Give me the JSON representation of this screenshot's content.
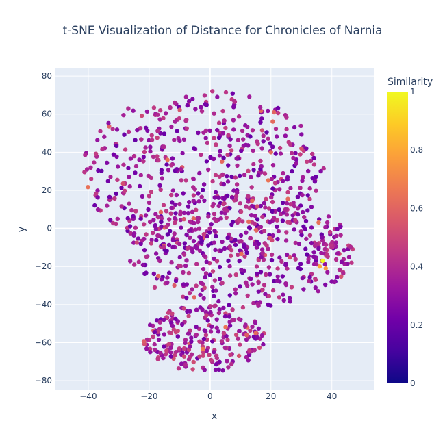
{
  "chart_data": {
    "type": "scatter",
    "title": "t-SNE Visualization of Distance for Chronicles of Narnia",
    "xlabel": "x",
    "ylabel": "y",
    "xlim": [
      -51,
      54
    ],
    "ylim": [
      -85,
      84
    ],
    "xticks": [
      -40,
      -20,
      0,
      20,
      40
    ],
    "yticks": [
      -80,
      -60,
      -40,
      -20,
      0,
      20,
      40,
      60,
      80
    ],
    "grid": true,
    "colorbar": {
      "title": "Similarity",
      "range": [
        0,
        1
      ],
      "ticks": [
        0,
        0.2,
        0.4,
        0.6,
        0.8,
        1
      ],
      "colorscale": [
        "#0d0887",
        "#46039f",
        "#7201a8",
        "#9c179e",
        "#bd3786",
        "#d8576b",
        "#ed7953",
        "#fb9f3a",
        "#fdca26",
        "#f0f921"
      ]
    },
    "clusters": [
      {
        "region": "upper",
        "cx": -2,
        "cy": 30,
        "rx": 40,
        "ry": 43,
        "count": 540,
        "similarity_mean": 0.33
      },
      {
        "region": "middle",
        "cx": 10,
        "cy": -12,
        "rx": 37,
        "ry": 30,
        "count": 380,
        "similarity_mean": 0.33
      },
      {
        "region": "lower",
        "cx": -2,
        "cy": -58,
        "rx": 20,
        "ry": 18,
        "count": 230,
        "similarity_mean": 0.36
      }
    ],
    "highlight_points": [
      {
        "x": 37,
        "y": -17,
        "similarity": 1.0
      },
      {
        "x": 36,
        "y": -20,
        "similarity": 0.8
      },
      {
        "x": 38,
        "y": -21,
        "similarity": 0.75
      },
      {
        "x": -14,
        "y": 36,
        "similarity": 0.65
      },
      {
        "x": 20,
        "y": 40,
        "similarity": 0.62
      },
      {
        "x": 21,
        "y": 61,
        "similarity": 0.6
      },
      {
        "x": 15,
        "y": -55,
        "similarity": 0.62
      },
      {
        "x": -17,
        "y": -25,
        "similarity": 0.6
      },
      {
        "x": 30,
        "y": 42,
        "similarity": 0.55
      },
      {
        "x": 12,
        "y": -56,
        "similarity": 0.58
      }
    ],
    "points": [],
    "seed": 7
  }
}
